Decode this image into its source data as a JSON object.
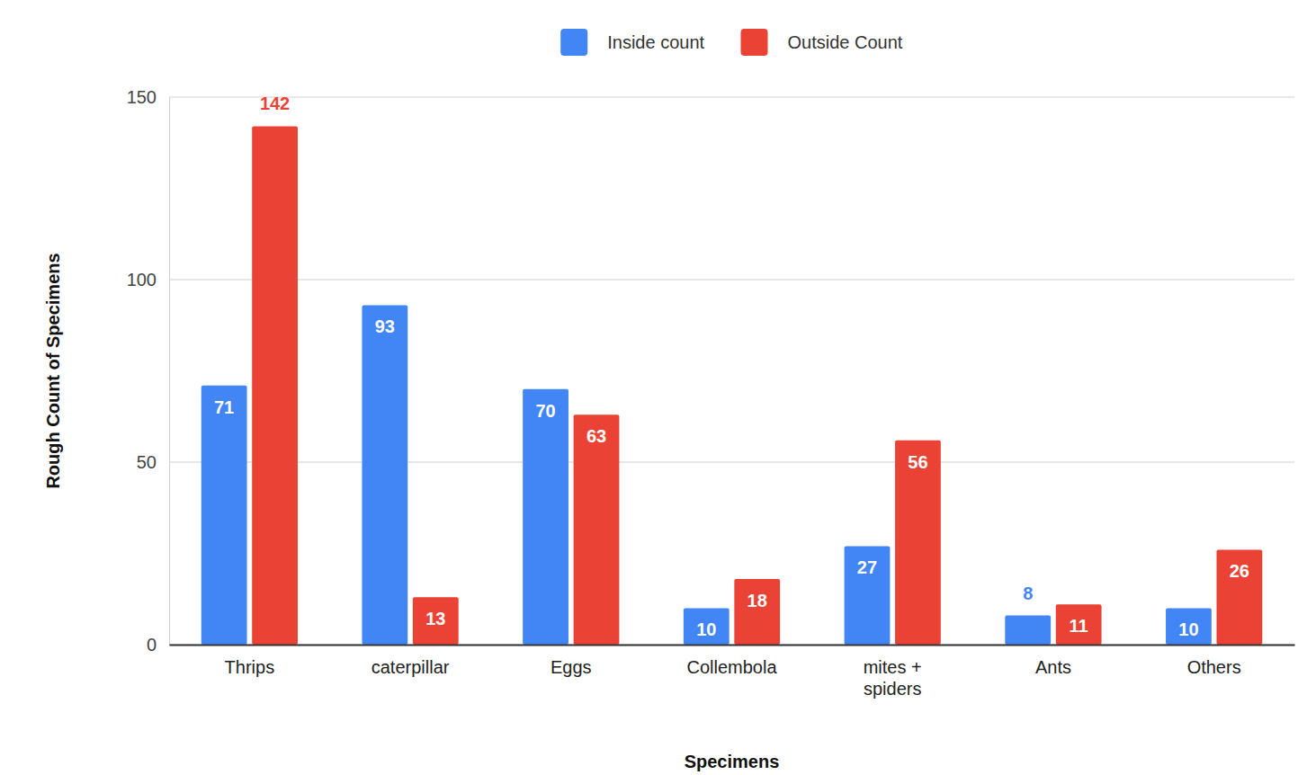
{
  "chart_data": {
    "type": "bar",
    "x_label": "Specimens",
    "y_label": "Rough Count of Specimens",
    "categories": [
      "Thrips",
      "caterpillar",
      "Eggs",
      "Collembola",
      "mites + spiders",
      "Ants",
      "Others"
    ],
    "series": [
      {
        "name": "Inside count",
        "color": "#4285f4",
        "values": [
          71,
          93,
          70,
          10,
          27,
          8,
          10
        ]
      },
      {
        "name": "Outside Count",
        "color": "#ea4335",
        "values": [
          142,
          13,
          63,
          18,
          56,
          11,
          26
        ]
      }
    ],
    "ylim": [
      0,
      150
    ],
    "yticks": [
      0,
      50,
      100,
      150
    ],
    "grid": true,
    "legend": "top",
    "data_labels": true
  }
}
